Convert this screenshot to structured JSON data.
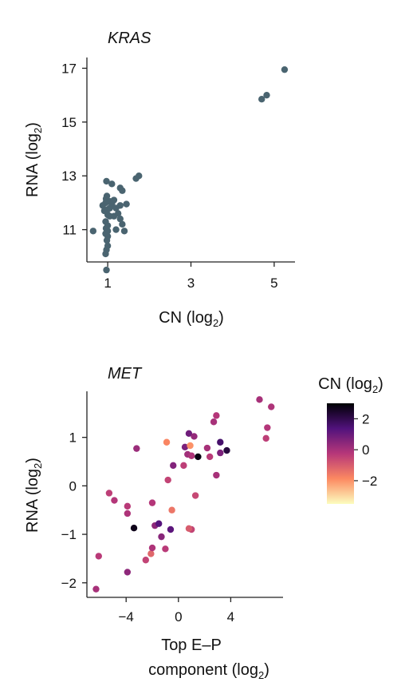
{
  "chart_data": [
    {
      "type": "scatter",
      "title": "KRAS",
      "xlabel": "CN (log",
      "xlabel_sub": "2",
      "xlabel_end": ")",
      "ylabel": "RNA (log",
      "ylabel_sub": "2",
      "ylabel_end": ")",
      "xlim": [
        0.5,
        5.5
      ],
      "ylim": [
        9.8,
        17.4
      ],
      "xticks": [
        1,
        3,
        5
      ],
      "yticks": [
        11,
        13,
        15,
        17
      ],
      "color": "#4a6470",
      "points": [
        [
          0.65,
          10.95
        ],
        [
          0.95,
          10.1
        ],
        [
          0.97,
          10.25
        ],
        [
          1.0,
          10.4
        ],
        [
          0.98,
          10.6
        ],
        [
          1.0,
          10.75
        ],
        [
          0.95,
          10.85
        ],
        [
          1.0,
          10.95
        ],
        [
          0.96,
          11.05
        ],
        [
          1.0,
          11.15
        ],
        [
          0.95,
          11.3
        ],
        [
          1.05,
          11.5
        ],
        [
          1.0,
          11.55
        ],
        [
          0.92,
          11.7
        ],
        [
          1.0,
          11.75
        ],
        [
          1.05,
          11.8
        ],
        [
          0.88,
          11.9
        ],
        [
          0.95,
          12.0
        ],
        [
          1.0,
          12.05
        ],
        [
          1.05,
          12.05
        ],
        [
          0.96,
          12.15
        ],
        [
          0.98,
          12.25
        ],
        [
          1.1,
          11.95
        ],
        [
          1.15,
          12.1
        ],
        [
          1.2,
          11.8
        ],
        [
          1.25,
          11.6
        ],
        [
          1.3,
          11.4
        ],
        [
          1.35,
          11.2
        ],
        [
          1.2,
          11.0
        ],
        [
          1.4,
          10.95
        ],
        [
          1.15,
          11.5
        ],
        [
          1.3,
          11.9
        ],
        [
          1.45,
          11.95
        ],
        [
          1.1,
          12.7
        ],
        [
          0.97,
          12.8
        ],
        [
          1.3,
          12.55
        ],
        [
          1.35,
          12.45
        ],
        [
          1.68,
          12.9
        ],
        [
          1.75,
          13.0
        ],
        [
          0.97,
          9.5
        ],
        [
          4.7,
          15.85
        ],
        [
          4.82,
          16.0
        ],
        [
          5.25,
          16.95
        ]
      ]
    },
    {
      "type": "scatter",
      "title": "MET",
      "xlabel_line1": "Top E–P",
      "xlabel": "component (log",
      "xlabel_sub": "2",
      "xlabel_end": ")",
      "ylabel": "RNA (log",
      "ylabel_sub": "2",
      "ylabel_end": ")",
      "xlim": [
        -7,
        8
      ],
      "ylim": [
        -2.3,
        1.95
      ],
      "xticks": [
        -4,
        0,
        4
      ],
      "xtick_labels": [
        "−4",
        "0",
        "4"
      ],
      "yticks": [
        -2,
        -1,
        0,
        1
      ],
      "ytick_labels": [
        "−2",
        "−1",
        "0",
        "1"
      ],
      "colorbar": {
        "title": "CN (log",
        "title_sub": "2",
        "title_end": ")",
        "range": [
          -3.5,
          3.0
        ],
        "ticks": [
          2,
          0,
          -2
        ],
        "tick_labels": [
          "2",
          "0",
          "−2"
        ],
        "colormap": [
          "#fcfdbf",
          "#fc8961",
          "#b73779",
          "#51127c",
          "#000004"
        ]
      },
      "points": [
        {
          "x": -6.3,
          "y": -2.13,
          "cn": 0.0
        },
        {
          "x": -6.1,
          "y": -1.45,
          "cn": -0.3
        },
        {
          "x": -5.3,
          "y": -0.15,
          "cn": -0.4
        },
        {
          "x": -4.9,
          "y": -0.3,
          "cn": -0.2
        },
        {
          "x": -3.9,
          "y": -0.42,
          "cn": -0.3
        },
        {
          "x": -3.9,
          "y": -0.57,
          "cn": -0.1
        },
        {
          "x": -3.9,
          "y": -1.78,
          "cn": 0.4
        },
        {
          "x": -3.2,
          "y": 0.77,
          "cn": 0.2
        },
        {
          "x": -3.4,
          "y": -0.87,
          "cn": 2.7
        },
        {
          "x": -2.5,
          "y": -1.53,
          "cn": -0.5
        },
        {
          "x": -2.1,
          "y": -1.4,
          "cn": -1.2
        },
        {
          "x": -2.0,
          "y": -1.28,
          "cn": -0.1
        },
        {
          "x": -2.0,
          "y": -0.35,
          "cn": -0.2
        },
        {
          "x": -1.8,
          "y": -0.82,
          "cn": 0.4
        },
        {
          "x": -1.5,
          "y": -0.78,
          "cn": 1.3
        },
        {
          "x": -1.3,
          "y": -1.05,
          "cn": 0.5
        },
        {
          "x": -1.0,
          "y": -1.3,
          "cn": -0.3
        },
        {
          "x": -0.9,
          "y": 0.9,
          "cn": -1.8
        },
        {
          "x": -0.8,
          "y": 0.12,
          "cn": -0.5
        },
        {
          "x": -0.6,
          "y": -0.9,
          "cn": 1.2
        },
        {
          "x": -0.5,
          "y": -0.5,
          "cn": -1.5
        },
        {
          "x": -0.4,
          "y": 0.42,
          "cn": 0.6
        },
        {
          "x": 0.4,
          "y": 0.42,
          "cn": -0.4
        },
        {
          "x": 0.5,
          "y": 0.8,
          "cn": 0.7
        },
        {
          "x": 0.7,
          "y": 0.65,
          "cn": 0.1
        },
        {
          "x": 0.8,
          "y": 1.08,
          "cn": 0.9
        },
        {
          "x": 0.9,
          "y": 0.83,
          "cn": -2.0
        },
        {
          "x": 1.0,
          "y": -0.9,
          "cn": -0.5
        },
        {
          "x": 1.0,
          "y": 0.62,
          "cn": -0.1
        },
        {
          "x": 1.2,
          "y": 1.02,
          "cn": 0.3
        },
        {
          "x": 1.3,
          "y": -0.2,
          "cn": -0.6
        },
        {
          "x": 1.5,
          "y": 0.6,
          "cn": 2.8
        },
        {
          "x": 0.8,
          "y": -0.88,
          "cn": -1.0
        },
        {
          "x": 2.2,
          "y": 0.78,
          "cn": 0.0
        },
        {
          "x": 2.4,
          "y": 0.6,
          "cn": -0.3
        },
        {
          "x": 2.7,
          "y": 1.32,
          "cn": 0.0
        },
        {
          "x": 2.9,
          "y": 1.45,
          "cn": -0.2
        },
        {
          "x": 2.9,
          "y": 0.22,
          "cn": 0.0
        },
        {
          "x": 3.2,
          "y": 0.9,
          "cn": 1.6
        },
        {
          "x": 3.2,
          "y": 0.68,
          "cn": 0.7
        },
        {
          "x": 3.7,
          "y": 0.73,
          "cn": 2.2
        },
        {
          "x": 6.2,
          "y": 1.78,
          "cn": 0.0
        },
        {
          "x": 6.7,
          "y": 0.98,
          "cn": -0.4
        },
        {
          "x": 6.8,
          "y": 1.2,
          "cn": -0.2
        },
        {
          "x": 7.1,
          "y": 1.63,
          "cn": -0.1
        }
      ]
    }
  ]
}
